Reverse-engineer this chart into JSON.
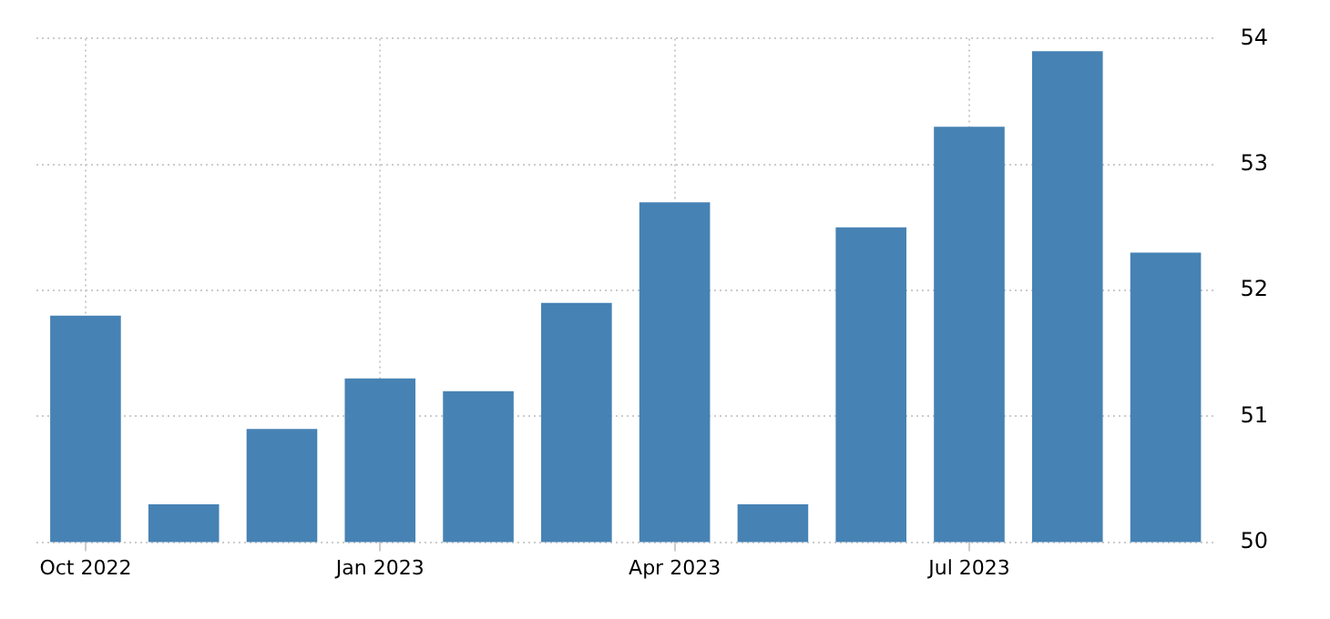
{
  "chart_data": {
    "type": "bar",
    "categories": [
      "Oct 2022",
      null,
      null,
      "Jan 2023",
      null,
      null,
      "Apr 2023",
      null,
      null,
      "Jul 2023",
      null,
      null
    ],
    "values": [
      51.8,
      50.3,
      50.9,
      51.3,
      51.2,
      51.9,
      52.7,
      50.3,
      52.5,
      53.3,
      53.9,
      52.3
    ],
    "color": "#4682b4",
    "ylim": [
      50,
      54
    ],
    "yticks": [
      50,
      51,
      52,
      53,
      54
    ],
    "grid": true,
    "legend": false
  }
}
